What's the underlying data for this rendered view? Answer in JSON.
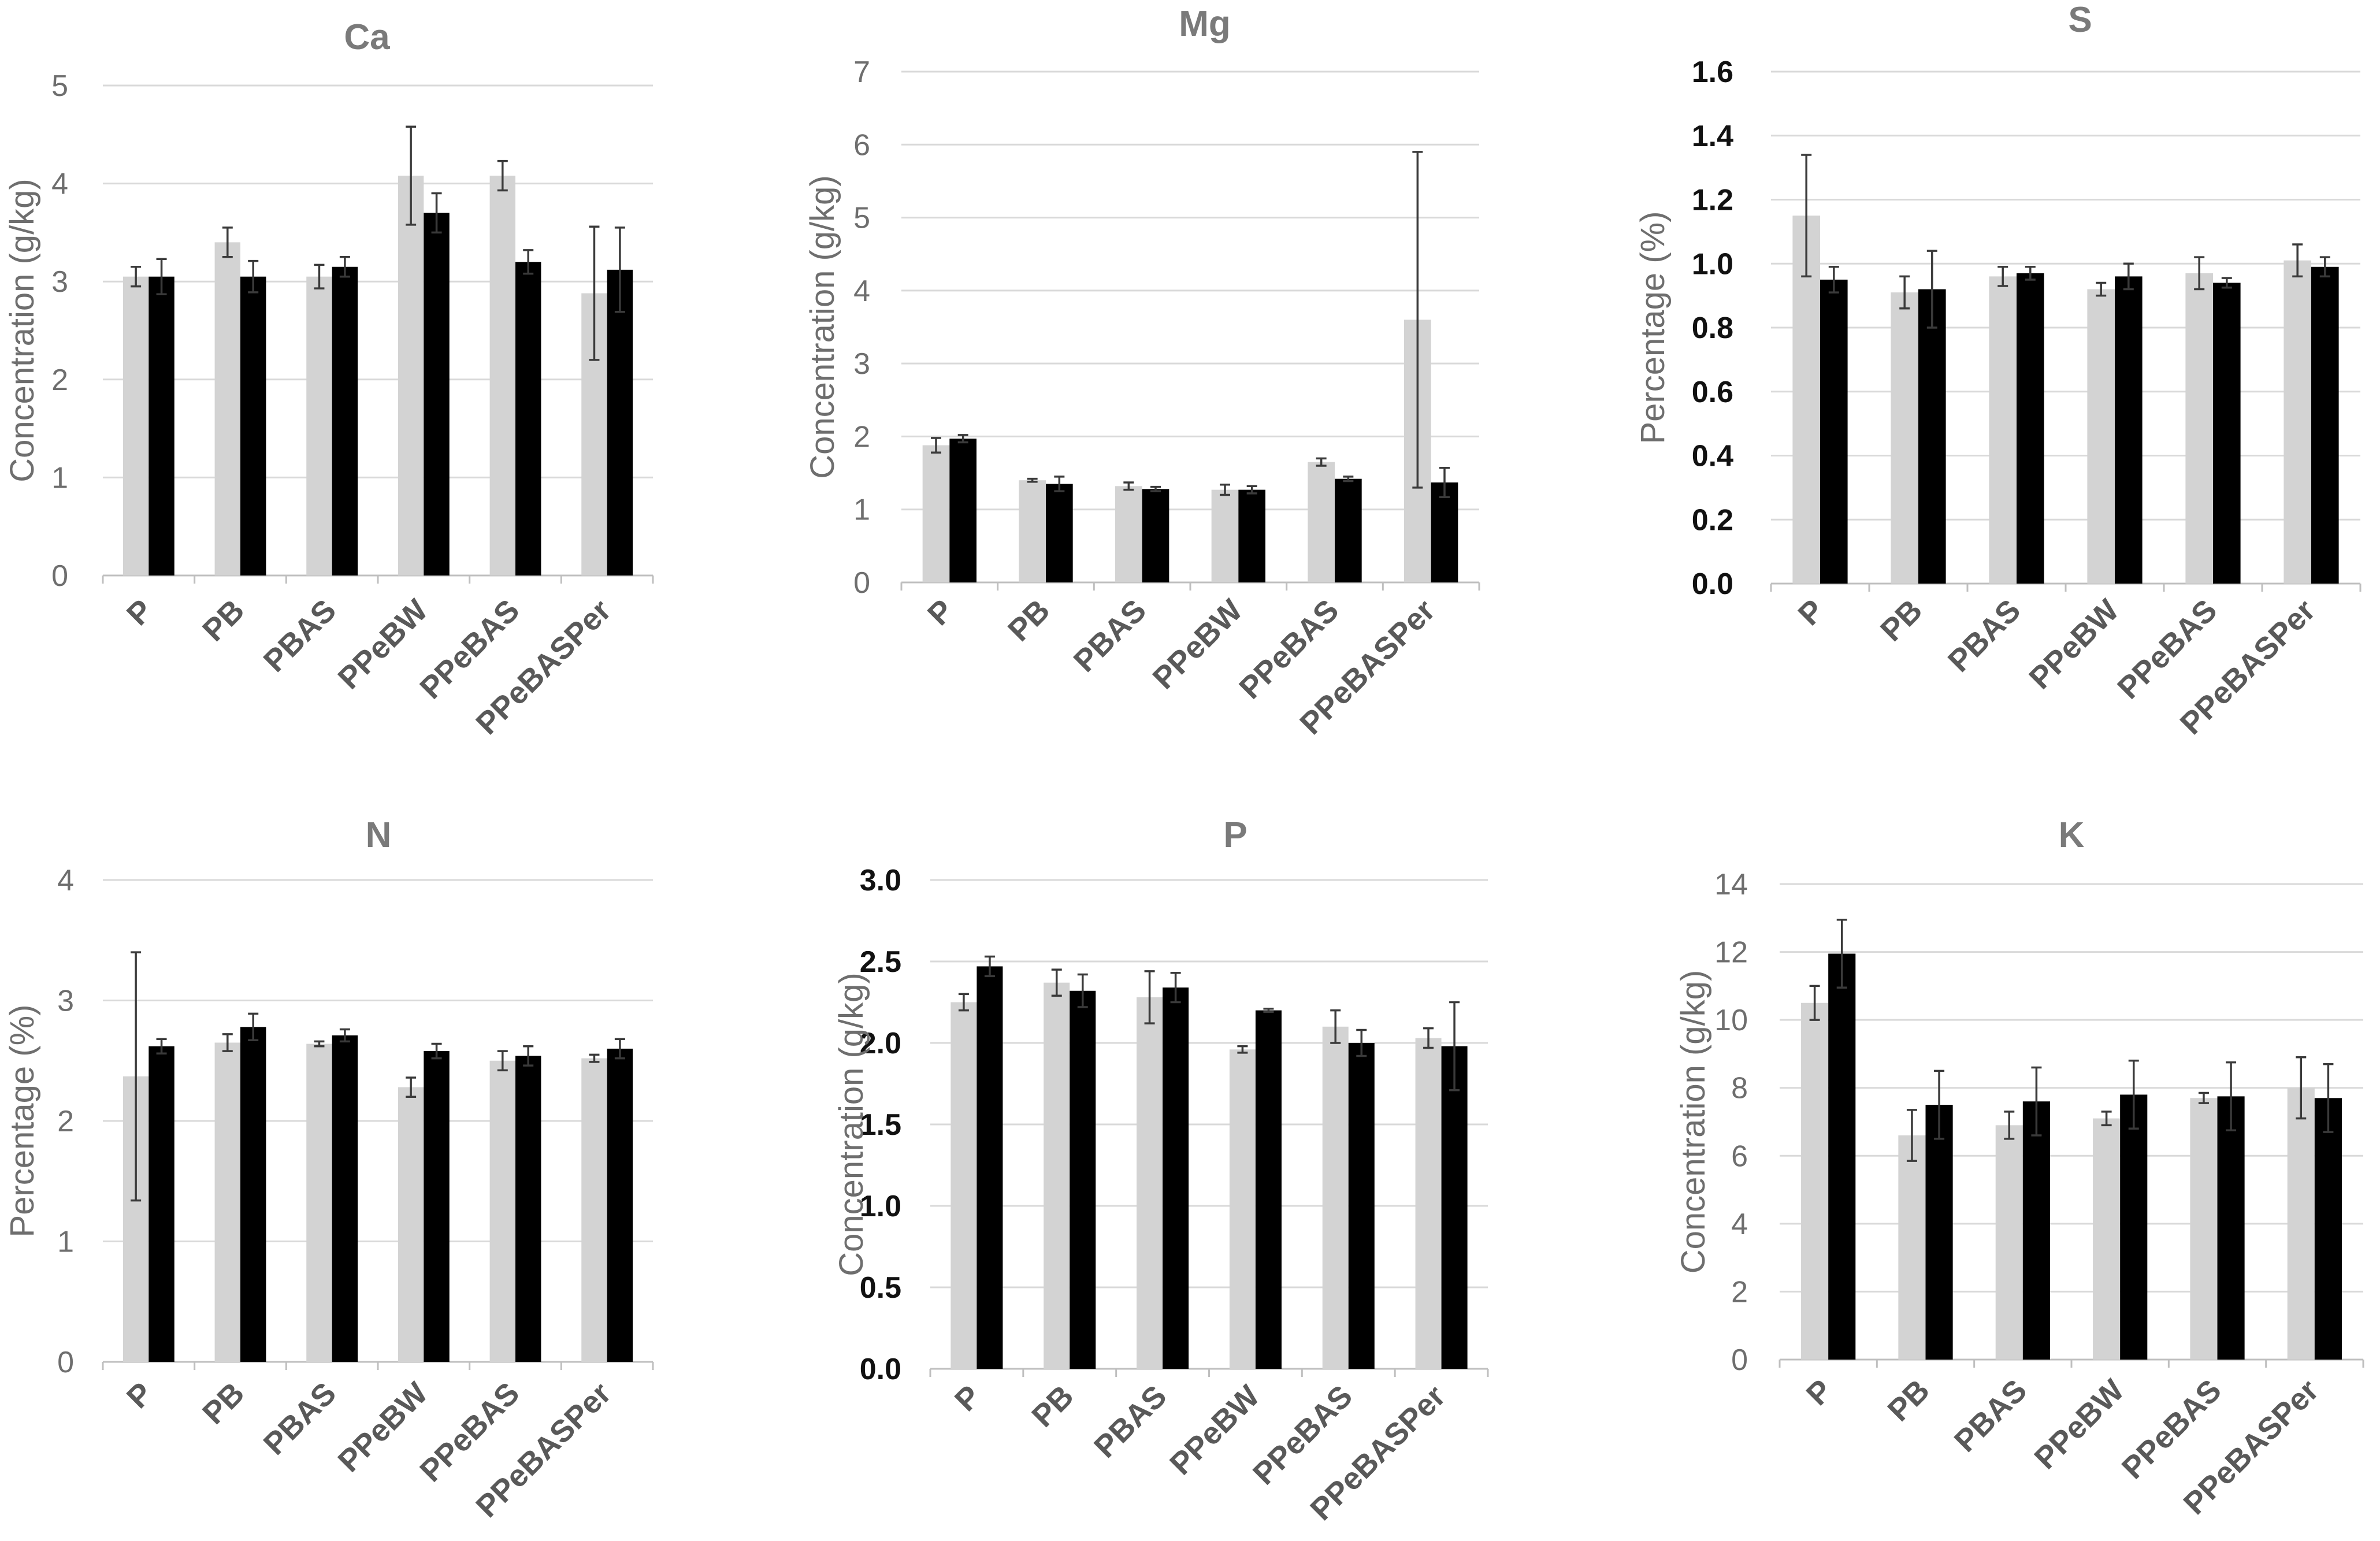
{
  "chart_data": [
    {
      "type": "bar",
      "title": "Ca",
      "ylabel": "Concentration (g/kg)",
      "xlabel": "",
      "ylim": [
        0,
        5
      ],
      "yticks": [
        "0",
        "1",
        "2",
        "3",
        "4",
        "5"
      ],
      "tick_style": "gray",
      "categories": [
        "P",
        "PB",
        "PBAS",
        "PPeBW",
        "PPeBAS",
        "PPeBASPer"
      ],
      "colors": [
        "#d3d3d3",
        "#000000"
      ],
      "series": [
        {
          "name": "",
          "values": [
            3.05,
            3.4,
            3.05,
            4.08,
            4.08,
            2.88
          ],
          "errors": [
            0.1,
            0.15,
            0.12,
            0.5,
            0.15,
            0.68
          ]
        },
        {
          "name": "",
          "values": [
            3.05,
            3.05,
            3.15,
            3.7,
            3.2,
            3.12
          ],
          "errors": [
            0.18,
            0.16,
            0.1,
            0.2,
            0.12,
            0.43
          ]
        }
      ]
    },
    {
      "type": "bar",
      "title": "Mg",
      "ylabel": "Concentration (g/kg)",
      "xlabel": "",
      "ylim": [
        0,
        7
      ],
      "yticks": [
        "0",
        "1",
        "2",
        "3",
        "4",
        "5",
        "6",
        "7"
      ],
      "tick_style": "gray",
      "categories": [
        "P",
        "PB",
        "PBAS",
        "PPeBW",
        "PPeBAS",
        "PPeBASPer"
      ],
      "colors": [
        "#d3d3d3",
        "#000000"
      ],
      "series": [
        {
          "name": "",
          "values": [
            1.88,
            1.4,
            1.32,
            1.27,
            1.65,
            3.6
          ],
          "errors": [
            0.1,
            0.02,
            0.05,
            0.07,
            0.05,
            2.3
          ]
        },
        {
          "name": "",
          "values": [
            1.97,
            1.35,
            1.28,
            1.27,
            1.42,
            1.37
          ],
          "errors": [
            0.05,
            0.1,
            0.03,
            0.05,
            0.03,
            0.2
          ]
        }
      ]
    },
    {
      "type": "bar",
      "title": "S",
      "ylabel": "Percentage (%)",
      "xlabel": "",
      "ylim": [
        0,
        1.6
      ],
      "yticks": [
        "0.0",
        "0.2",
        "0.4",
        "0.6",
        "0.8",
        "1.0",
        "1.2",
        "1.4",
        "1.6"
      ],
      "tick_style": "dark",
      "categories": [
        "P",
        "PB",
        "PBAS",
        "PPeBW",
        "PPeBAS",
        "PPeBASPer"
      ],
      "colors": [
        "#d3d3d3",
        "#000000"
      ],
      "series": [
        {
          "name": "",
          "values": [
            1.15,
            0.91,
            0.96,
            0.92,
            0.97,
            1.01
          ],
          "errors": [
            0.19,
            0.05,
            0.03,
            0.02,
            0.05,
            0.05
          ]
        },
        {
          "name": "",
          "values": [
            0.95,
            0.92,
            0.97,
            0.96,
            0.94,
            0.99
          ],
          "errors": [
            0.04,
            0.12,
            0.02,
            0.04,
            0.015,
            0.03
          ]
        }
      ]
    },
    {
      "type": "bar",
      "title": "N",
      "ylabel": "Percentage (%)",
      "xlabel": "",
      "ylim": [
        0,
        4
      ],
      "yticks": [
        "0",
        "1",
        "2",
        "3",
        "4"
      ],
      "tick_style": "gray",
      "categories": [
        "P",
        "PB",
        "PBAS",
        "PPeBW",
        "PPeBAS",
        "PPeBASPer"
      ],
      "colors": [
        "#d3d3d3",
        "#000000"
      ],
      "series": [
        {
          "name": "",
          "values": [
            2.37,
            2.65,
            2.64,
            2.28,
            2.5,
            2.52
          ],
          "errors": [
            1.03,
            0.07,
            0.02,
            0.08,
            0.08,
            0.03
          ]
        },
        {
          "name": "",
          "values": [
            2.62,
            2.78,
            2.71,
            2.58,
            2.54,
            2.6
          ],
          "errors": [
            0.06,
            0.11,
            0.05,
            0.06,
            0.08,
            0.08
          ]
        }
      ]
    },
    {
      "type": "bar",
      "title": "P",
      "ylabel": "Concentration (g/kg)",
      "xlabel": "",
      "ylim": [
        0,
        3.0
      ],
      "yticks": [
        "0.0",
        "0.5",
        "1.0",
        "1.5",
        "2.0",
        "2.5",
        "3.0"
      ],
      "tick_style": "dark",
      "categories": [
        "P",
        "PB",
        "PBAS",
        "PPeBW",
        "PPeBAS",
        "PPeBASPer"
      ],
      "colors": [
        "#d3d3d3",
        "#000000"
      ],
      "series": [
        {
          "name": "",
          "values": [
            2.25,
            2.37,
            2.28,
            1.96,
            2.1,
            2.03
          ],
          "errors": [
            0.05,
            0.08,
            0.16,
            0.02,
            0.1,
            0.06
          ]
        },
        {
          "name": "",
          "values": [
            2.47,
            2.32,
            2.34,
            2.2,
            2.0,
            1.98
          ],
          "errors": [
            0.06,
            0.1,
            0.09,
            0.01,
            0.08,
            0.27
          ]
        }
      ]
    },
    {
      "type": "bar",
      "title": "K",
      "ylabel": "Concentration (g/kg)",
      "xlabel": "",
      "ylim": [
        0,
        14
      ],
      "yticks": [
        "0",
        "2",
        "4",
        "6",
        "8",
        "10",
        "12",
        "14"
      ],
      "tick_style": "gray",
      "categories": [
        "P",
        "PB",
        "PBAS",
        "PPeBW",
        "PPeBAS",
        "PPeBASPer"
      ],
      "colors": [
        "#d3d3d3",
        "#000000"
      ],
      "series": [
        {
          "name": "",
          "values": [
            10.5,
            6.6,
            6.9,
            7.1,
            7.7,
            8.0
          ],
          "errors": [
            0.5,
            0.75,
            0.4,
            0.2,
            0.15,
            0.9
          ]
        },
        {
          "name": "",
          "values": [
            11.95,
            7.5,
            7.6,
            7.8,
            7.75,
            7.7
          ],
          "errors": [
            1.0,
            1.0,
            1.0,
            1.0,
            1.0,
            1.0
          ]
        }
      ]
    }
  ]
}
